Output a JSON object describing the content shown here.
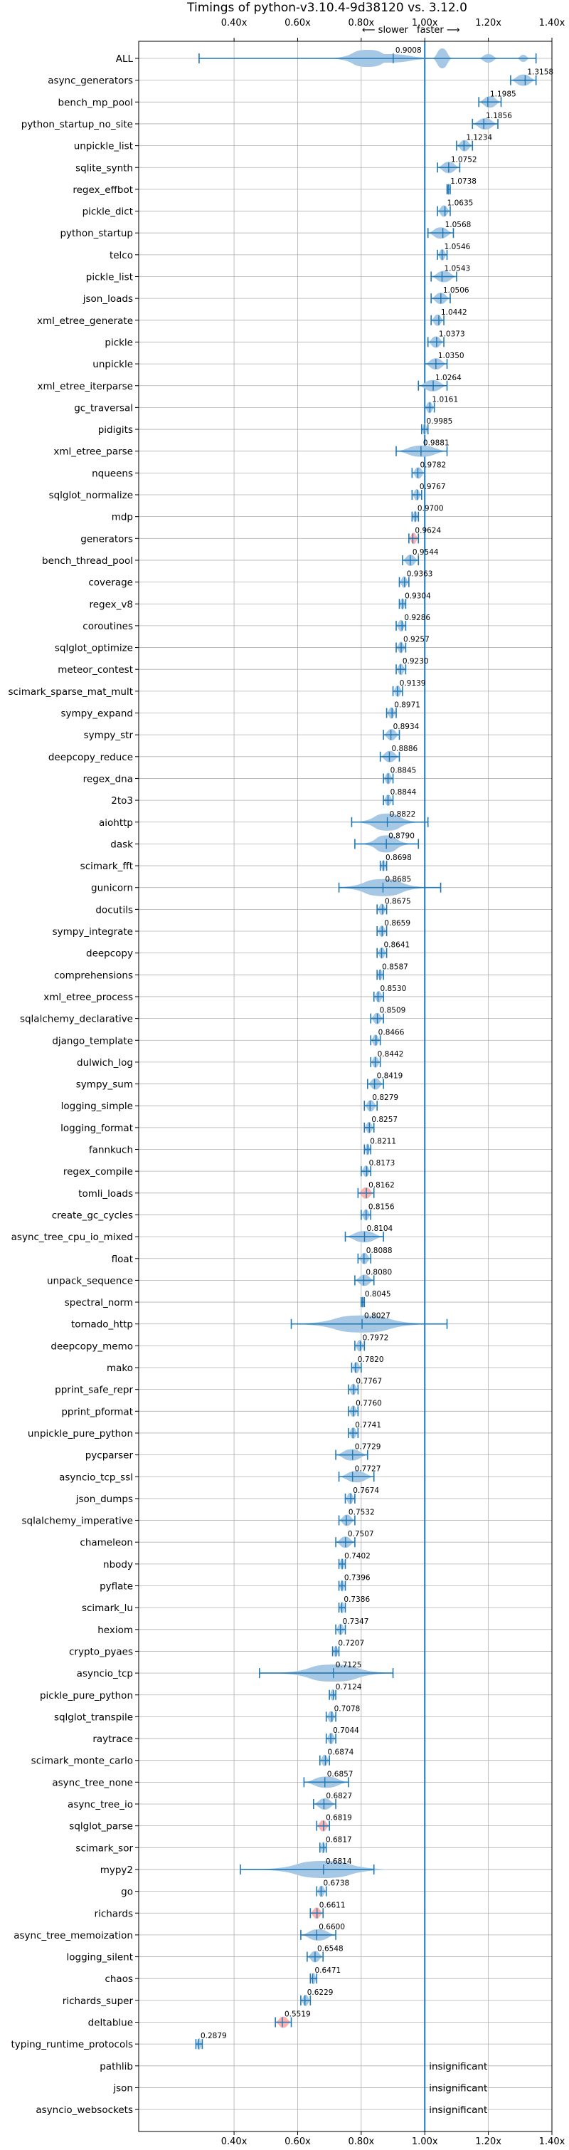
{
  "chart_data": {
    "type": "violin",
    "title": "Timings of python-v3.10.4-9d38120 vs. 3.12.0",
    "direction_labels": [
      "⟵ slower",
      "faster ⟶"
    ],
    "xlim": [
      0.1,
      1.4
    ],
    "x_ticks": [
      0.4,
      0.6,
      0.8,
      1.0,
      1.2,
      1.4
    ],
    "x_tick_labels": [
      "0.40x",
      "0.60x",
      "0.80x",
      "1.00x",
      "1.20x",
      "1.40x"
    ],
    "reference_line": 1.0,
    "grid": true,
    "colors": {
      "violin": "#a6c8e4",
      "line": "#1f77b4",
      "highlight": "#ff9896"
    },
    "insignificant_text": "insignificant",
    "benchmarks": [
      {
        "name": "ALL",
        "value": 0.9008,
        "label": "0.9008",
        "min": 0.29,
        "max": 1.35,
        "spread": "all"
      },
      {
        "name": "async_generators",
        "value": 1.3158,
        "label": "1.3158",
        "min": 1.27,
        "max": 1.35
      },
      {
        "name": "bench_mp_pool",
        "value": 1.1985,
        "label": "1.1985",
        "min": 1.17,
        "max": 1.24
      },
      {
        "name": "python_startup_no_site",
        "value": 1.1856,
        "label": "1.1856",
        "min": 1.15,
        "max": 1.23
      },
      {
        "name": "unpickle_list",
        "value": 1.1234,
        "label": "1.1234",
        "min": 1.1,
        "max": 1.15
      },
      {
        "name": "sqlite_synth",
        "value": 1.0752,
        "label": "1.0752",
        "min": 1.04,
        "max": 1.11
      },
      {
        "name": "regex_effbot",
        "value": 1.0738,
        "label": "1.0738",
        "min": 1.07,
        "max": 1.08
      },
      {
        "name": "pickle_dict",
        "value": 1.0635,
        "label": "1.0635",
        "min": 1.04,
        "max": 1.08
      },
      {
        "name": "python_startup",
        "value": 1.0568,
        "label": "1.0568",
        "min": 1.01,
        "max": 1.09
      },
      {
        "name": "telco",
        "value": 1.0546,
        "label": "1.0546",
        "min": 1.04,
        "max": 1.07
      },
      {
        "name": "pickle_list",
        "value": 1.0543,
        "label": "1.0543",
        "min": 1.02,
        "max": 1.1
      },
      {
        "name": "json_loads",
        "value": 1.0506,
        "label": "1.0506",
        "min": 1.02,
        "max": 1.08
      },
      {
        "name": "xml_etree_generate",
        "value": 1.0442,
        "label": "1.0442",
        "min": 1.02,
        "max": 1.06
      },
      {
        "name": "pickle",
        "value": 1.0373,
        "label": "1.0373",
        "min": 1.01,
        "max": 1.06
      },
      {
        "name": "unpickle",
        "value": 1.035,
        "label": "1.0350",
        "min": 1.0,
        "max": 1.07
      },
      {
        "name": "xml_etree_iterparse",
        "value": 1.0264,
        "label": "1.0264",
        "min": 0.98,
        "max": 1.07
      },
      {
        "name": "gc_traversal",
        "value": 1.0161,
        "label": "1.0161",
        "min": 1.0,
        "max": 1.03
      },
      {
        "name": "pidigits",
        "value": 0.9985,
        "label": "0.9985",
        "min": 0.99,
        "max": 1.01
      },
      {
        "name": "xml_etree_parse",
        "value": 0.9881,
        "label": "0.9881",
        "min": 0.91,
        "max": 1.07
      },
      {
        "name": "nqueens",
        "value": 0.9782,
        "label": "0.9782",
        "min": 0.96,
        "max": 1.0
      },
      {
        "name": "sqlglot_normalize",
        "value": 0.9767,
        "label": "0.9767",
        "min": 0.96,
        "max": 0.99
      },
      {
        "name": "mdp",
        "value": 0.97,
        "label": "0.9700",
        "min": 0.96,
        "max": 0.98
      },
      {
        "name": "generators",
        "value": 0.9624,
        "label": "0.9624",
        "min": 0.95,
        "max": 0.98,
        "highlight": true
      },
      {
        "name": "bench_thread_pool",
        "value": 0.9544,
        "label": "0.9544",
        "min": 0.93,
        "max": 0.98
      },
      {
        "name": "coverage",
        "value": 0.9363,
        "label": "0.9363",
        "min": 0.92,
        "max": 0.95
      },
      {
        "name": "regex_v8",
        "value": 0.9304,
        "label": "0.9304",
        "min": 0.92,
        "max": 0.94
      },
      {
        "name": "coroutines",
        "value": 0.9286,
        "label": "0.9286",
        "min": 0.91,
        "max": 0.94
      },
      {
        "name": "sqlglot_optimize",
        "value": 0.9257,
        "label": "0.9257",
        "min": 0.91,
        "max": 0.94
      },
      {
        "name": "meteor_contest",
        "value": 0.923,
        "label": "0.9230",
        "min": 0.91,
        "max": 0.94
      },
      {
        "name": "scimark_sparse_mat_mult",
        "value": 0.9139,
        "label": "0.9139",
        "min": 0.9,
        "max": 0.93
      },
      {
        "name": "sympy_expand",
        "value": 0.8971,
        "label": "0.8971",
        "min": 0.88,
        "max": 0.91
      },
      {
        "name": "sympy_str",
        "value": 0.8934,
        "label": "0.8934",
        "min": 0.87,
        "max": 0.92
      },
      {
        "name": "deepcopy_reduce",
        "value": 0.8886,
        "label": "0.8886",
        "min": 0.86,
        "max": 0.92
      },
      {
        "name": "regex_dna",
        "value": 0.8845,
        "label": "0.8845",
        "min": 0.87,
        "max": 0.9
      },
      {
        "name": "2to3",
        "value": 0.8844,
        "label": "0.8844",
        "min": 0.87,
        "max": 0.9
      },
      {
        "name": "aiohttp",
        "value": 0.8822,
        "label": "0.8822",
        "min": 0.77,
        "max": 1.01,
        "spread": "wide"
      },
      {
        "name": "dask",
        "value": 0.879,
        "label": "0.8790",
        "min": 0.78,
        "max": 0.98,
        "spread": "wide"
      },
      {
        "name": "scimark_fft",
        "value": 0.8698,
        "label": "0.8698",
        "min": 0.86,
        "max": 0.88
      },
      {
        "name": "gunicorn",
        "value": 0.8685,
        "label": "0.8685",
        "min": 0.73,
        "max": 1.05,
        "spread": "wide"
      },
      {
        "name": "docutils",
        "value": 0.8675,
        "label": "0.8675",
        "min": 0.85,
        "max": 0.88
      },
      {
        "name": "sympy_integrate",
        "value": 0.8659,
        "label": "0.8659",
        "min": 0.85,
        "max": 0.88
      },
      {
        "name": "deepcopy",
        "value": 0.8641,
        "label": "0.8641",
        "min": 0.85,
        "max": 0.88
      },
      {
        "name": "comprehensions",
        "value": 0.8587,
        "label": "0.8587",
        "min": 0.85,
        "max": 0.87
      },
      {
        "name": "xml_etree_process",
        "value": 0.853,
        "label": "0.8530",
        "min": 0.84,
        "max": 0.87
      },
      {
        "name": "sqlalchemy_declarative",
        "value": 0.8509,
        "label": "0.8509",
        "min": 0.83,
        "max": 0.87
      },
      {
        "name": "django_template",
        "value": 0.8466,
        "label": "0.8466",
        "min": 0.83,
        "max": 0.86
      },
      {
        "name": "dulwich_log",
        "value": 0.8442,
        "label": "0.8442",
        "min": 0.83,
        "max": 0.86
      },
      {
        "name": "sympy_sum",
        "value": 0.8419,
        "label": "0.8419",
        "min": 0.82,
        "max": 0.87
      },
      {
        "name": "logging_simple",
        "value": 0.8279,
        "label": "0.8279",
        "min": 0.81,
        "max": 0.85
      },
      {
        "name": "logging_format",
        "value": 0.8257,
        "label": "0.8257",
        "min": 0.81,
        "max": 0.84
      },
      {
        "name": "fannkuch",
        "value": 0.8211,
        "label": "0.8211",
        "min": 0.81,
        "max": 0.83
      },
      {
        "name": "regex_compile",
        "value": 0.8173,
        "label": "0.8173",
        "min": 0.8,
        "max": 0.83
      },
      {
        "name": "tomli_loads",
        "value": 0.8162,
        "label": "0.8162",
        "min": 0.79,
        "max": 0.84,
        "highlight": true
      },
      {
        "name": "create_gc_cycles",
        "value": 0.8156,
        "label": "0.8156",
        "min": 0.8,
        "max": 0.83
      },
      {
        "name": "async_tree_cpu_io_mixed",
        "value": 0.8104,
        "label": "0.8104",
        "min": 0.75,
        "max": 0.87
      },
      {
        "name": "float",
        "value": 0.8088,
        "label": "0.8088",
        "min": 0.79,
        "max": 0.83
      },
      {
        "name": "unpack_sequence",
        "value": 0.808,
        "label": "0.8080",
        "min": 0.78,
        "max": 0.84
      },
      {
        "name": "spectral_norm",
        "value": 0.8045,
        "label": "0.8045",
        "min": 0.8,
        "max": 0.81
      },
      {
        "name": "tornado_http",
        "value": 0.8027,
        "label": "0.8027",
        "min": 0.58,
        "max": 1.07,
        "spread": "wide"
      },
      {
        "name": "deepcopy_memo",
        "value": 0.7972,
        "label": "0.7972",
        "min": 0.78,
        "max": 0.81
      },
      {
        "name": "mako",
        "value": 0.782,
        "label": "0.7820",
        "min": 0.77,
        "max": 0.8
      },
      {
        "name": "pprint_safe_repr",
        "value": 0.7767,
        "label": "0.7767",
        "min": 0.76,
        "max": 0.79
      },
      {
        "name": "pprint_pformat",
        "value": 0.776,
        "label": "0.7760",
        "min": 0.76,
        "max": 0.79
      },
      {
        "name": "unpickle_pure_python",
        "value": 0.7741,
        "label": "0.7741",
        "min": 0.76,
        "max": 0.79
      },
      {
        "name": "pycparser",
        "value": 0.7729,
        "label": "0.7729",
        "min": 0.72,
        "max": 0.82
      },
      {
        "name": "asyncio_tcp_ssl",
        "value": 0.7727,
        "label": "0.7727",
        "min": 0.73,
        "max": 0.84
      },
      {
        "name": "json_dumps",
        "value": 0.7674,
        "label": "0.7674",
        "min": 0.75,
        "max": 0.78
      },
      {
        "name": "sqlalchemy_imperative",
        "value": 0.7532,
        "label": "0.7532",
        "min": 0.73,
        "max": 0.78
      },
      {
        "name": "chameleon",
        "value": 0.7507,
        "label": "0.7507",
        "min": 0.72,
        "max": 0.78
      },
      {
        "name": "nbody",
        "value": 0.7402,
        "label": "0.7402",
        "min": 0.73,
        "max": 0.75
      },
      {
        "name": "pyflate",
        "value": 0.7396,
        "label": "0.7396",
        "min": 0.73,
        "max": 0.75
      },
      {
        "name": "scimark_lu",
        "value": 0.7386,
        "label": "0.7386",
        "min": 0.73,
        "max": 0.75
      },
      {
        "name": "hexiom",
        "value": 0.7347,
        "label": "0.7347",
        "min": 0.72,
        "max": 0.75
      },
      {
        "name": "crypto_pyaes",
        "value": 0.7207,
        "label": "0.7207",
        "min": 0.71,
        "max": 0.73
      },
      {
        "name": "asyncio_tcp",
        "value": 0.7125,
        "label": "0.7125",
        "min": 0.48,
        "max": 0.9,
        "spread": "wide"
      },
      {
        "name": "pickle_pure_python",
        "value": 0.7124,
        "label": "0.7124",
        "min": 0.7,
        "max": 0.72
      },
      {
        "name": "sqlglot_transpile",
        "value": 0.7078,
        "label": "0.7078",
        "min": 0.69,
        "max": 0.72
      },
      {
        "name": "raytrace",
        "value": 0.7044,
        "label": "0.7044",
        "min": 0.69,
        "max": 0.72
      },
      {
        "name": "scimark_monte_carlo",
        "value": 0.6874,
        "label": "0.6874",
        "min": 0.67,
        "max": 0.7
      },
      {
        "name": "async_tree_none",
        "value": 0.6857,
        "label": "0.6857",
        "min": 0.62,
        "max": 0.76
      },
      {
        "name": "async_tree_io",
        "value": 0.6827,
        "label": "0.6827",
        "min": 0.65,
        "max": 0.72
      },
      {
        "name": "sqlglot_parse",
        "value": 0.6819,
        "label": "0.6819",
        "min": 0.66,
        "max": 0.7,
        "highlight": true
      },
      {
        "name": "scimark_sor",
        "value": 0.6817,
        "label": "0.6817",
        "min": 0.67,
        "max": 0.69
      },
      {
        "name": "mypy2",
        "value": 0.6814,
        "label": "0.6814",
        "min": 0.42,
        "max": 0.84,
        "spread": "wide"
      },
      {
        "name": "go",
        "value": 0.6738,
        "label": "0.6738",
        "min": 0.66,
        "max": 0.69
      },
      {
        "name": "richards",
        "value": 0.6611,
        "label": "0.6611",
        "min": 0.64,
        "max": 0.68,
        "highlight": true
      },
      {
        "name": "async_tree_memoization",
        "value": 0.66,
        "label": "0.6600",
        "min": 0.61,
        "max": 0.72
      },
      {
        "name": "logging_silent",
        "value": 0.6548,
        "label": "0.6548",
        "min": 0.63,
        "max": 0.68
      },
      {
        "name": "chaos",
        "value": 0.6471,
        "label": "0.6471",
        "min": 0.64,
        "max": 0.66
      },
      {
        "name": "richards_super",
        "value": 0.6229,
        "label": "0.6229",
        "min": 0.61,
        "max": 0.64
      },
      {
        "name": "deltablue",
        "value": 0.5519,
        "label": "0.5519",
        "min": 0.53,
        "max": 0.58,
        "highlight": true
      },
      {
        "name": "typing_runtime_protocols",
        "value": 0.2879,
        "label": "0.2879",
        "min": 0.28,
        "max": 0.3
      },
      {
        "name": "pathlib",
        "value": null,
        "label": "",
        "insignificant": true
      },
      {
        "name": "json",
        "value": null,
        "label": "",
        "insignificant": true
      },
      {
        "name": "asyncio_websockets",
        "value": null,
        "label": "",
        "insignificant": true
      }
    ]
  }
}
